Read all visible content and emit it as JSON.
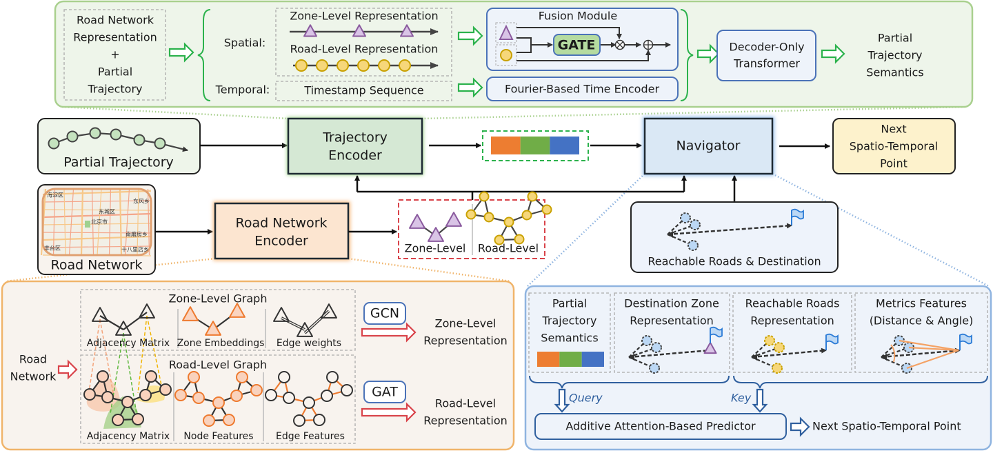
{
  "top_panel": {
    "input_box": [
      "Road Network",
      "Representation",
      "+",
      "Partial",
      "Trajectory"
    ],
    "spatial_label": "Spatial:",
    "temporal_label": "Temporal:",
    "zone_level_representation": "Zone-Level Representation",
    "road_level_representation": "Road-Level Representation",
    "timestamp_sequence": "Timestamp Sequence",
    "fusion_module": "Fusion Module",
    "gate": "GATE",
    "fourier_encoder": "Fourier-Based Time Encoder",
    "decoder": [
      "Decoder-Only",
      "Transformer"
    ],
    "output": [
      "Partial",
      "Trajectory",
      "Semantics"
    ]
  },
  "main_flow": {
    "partial_trajectory": "Partial Trajectory",
    "trajectory_encoder": [
      "Trajectory",
      "Encoder"
    ],
    "navigator": "Navigator",
    "next_point": [
      "Next",
      "Spatio-Temporal",
      "Point"
    ],
    "road_network": "Road Network",
    "road_network_encoder": [
      "Road Network",
      "Encoder"
    ],
    "zone_level": "Zone-Level",
    "road_level": "Road-Level",
    "reachable_roads_destination": "Reachable Roads & Destination",
    "map_labels": [
      "海淀区",
      "东城区",
      "北京市",
      "东风乡",
      "南磨房乡",
      "丰台区",
      "十八里店乡"
    ]
  },
  "encoder_panel": {
    "road_network_input": [
      "Road",
      "Network"
    ],
    "zone_graph_title": "Zone-Level Graph",
    "zone_graph_labels": [
      "Adjacency Matrix",
      "Zone Embeddings",
      "Edge weights"
    ],
    "road_graph_title": "Road-Level Graph",
    "road_graph_labels": [
      "Adjacency Matrix",
      "Node Features",
      "Edge Features"
    ],
    "gcn": "GCN",
    "gat": "GAT",
    "zone_output": [
      "Zone-Level",
      "Representation"
    ],
    "road_output": [
      "Road-Level",
      "Representation"
    ]
  },
  "navigator_panel": {
    "pts": [
      "Partial",
      "Trajectory",
      "Semantics"
    ],
    "destination": [
      "Destination Zone",
      "Representation"
    ],
    "reachable": [
      "Reachable Roads",
      "Representation"
    ],
    "metrics": [
      "Metrics Features",
      "(Distance & Angle)"
    ],
    "query": "Query",
    "key": "Key",
    "predictor": "Additive Attention-Based Predictor",
    "output": "Next Spatio-Temporal Point"
  },
  "colors": {
    "green_panel": "#eef5ea",
    "green_stroke": "#a9d08e",
    "orange_panel": "#f8f3ee",
    "orange_stroke": "#f0b46a",
    "blue_panel": "#eef3fa",
    "blue_stroke": "#8fb4e0",
    "semantic_bar": [
      "#ed7d31",
      "#70ad47",
      "#4472c4"
    ],
    "zone_node": "#a784b6",
    "road_node": "#f3d36b"
  }
}
